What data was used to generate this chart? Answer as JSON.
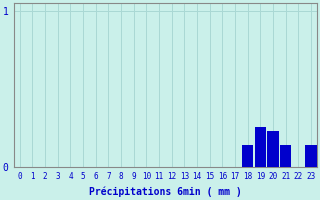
{
  "hours": [
    0,
    1,
    2,
    3,
    4,
    5,
    6,
    7,
    8,
    9,
    10,
    11,
    12,
    13,
    14,
    15,
    16,
    17,
    18,
    19,
    20,
    21,
    22,
    23
  ],
  "values": [
    0,
    0,
    0,
    0,
    0,
    0,
    0,
    0,
    0,
    0,
    0,
    0,
    0,
    0,
    0,
    0,
    0,
    0,
    0.14,
    0.26,
    0.23,
    0.14,
    0.0,
    0.14
  ],
  "bar_color": "#0000cc",
  "background_color": "#caf0ea",
  "grid_color": "#aad8d4",
  "xlabel": "Précipitations 6min ( mm )",
  "xlabel_color": "#0000cc",
  "tick_color": "#0000cc",
  "axis_color": "#888888",
  "ylim": [
    0,
    1.05
  ],
  "xlim": [
    -0.5,
    23.5
  ]
}
